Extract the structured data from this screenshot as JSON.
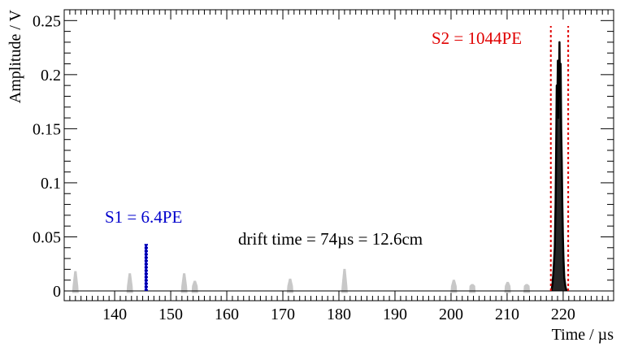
{
  "chart_data": {
    "type": "line",
    "title": "",
    "xlabel": "Time / µs",
    "ylabel": "Amplitude / V",
    "xlim": [
      131,
      229
    ],
    "ylim": [
      -0.009,
      0.26
    ],
    "x_major_ticks": [
      140,
      150,
      160,
      170,
      180,
      190,
      200,
      210,
      220
    ],
    "x_minor_step": 1,
    "y_major_ticks": [
      0,
      0.05,
      0.1,
      0.15,
      0.2,
      0.25
    ],
    "y_tick_labels": [
      "0",
      "0.05",
      "0.1",
      "0.15",
      "0.2",
      "0.25"
    ],
    "y_minor_step": 0.01,
    "grid": false,
    "legend": "none",
    "colors": {
      "noise": "#c8c8c8",
      "s1": "#0000cc",
      "s2_markers": "#e00000",
      "signal": "#000000",
      "baseline": "#000000"
    },
    "series": [
      {
        "role": "noise",
        "pulses": [
          {
            "x": 133.0,
            "y": 0.018
          },
          {
            "x": 142.7,
            "y": 0.016
          },
          {
            "x": 152.4,
            "y": 0.016
          },
          {
            "x": 154.3,
            "y": 0.009
          },
          {
            "x": 171.3,
            "y": 0.011
          },
          {
            "x": 181.0,
            "y": 0.02
          },
          {
            "x": 200.5,
            "y": 0.01
          },
          {
            "x": 203.8,
            "y": 0.006
          },
          {
            "x": 210.1,
            "y": 0.008
          },
          {
            "x": 213.5,
            "y": 0.006
          }
        ]
      },
      {
        "role": "s1",
        "pulses": [
          {
            "x": 145.6,
            "y": 0.043
          }
        ]
      },
      {
        "role": "s2",
        "waveform": [
          [
            217.9,
            0.0
          ],
          [
            218.1,
            0.006
          ],
          [
            218.3,
            0.02
          ],
          [
            218.5,
            0.04
          ],
          [
            218.65,
            0.08
          ],
          [
            218.75,
            0.13
          ],
          [
            218.85,
            0.19
          ],
          [
            218.95,
            0.17
          ],
          [
            219.05,
            0.213
          ],
          [
            219.15,
            0.16
          ],
          [
            219.25,
            0.19
          ],
          [
            219.35,
            0.23
          ],
          [
            219.45,
            0.18
          ],
          [
            219.55,
            0.21
          ],
          [
            219.65,
            0.15
          ],
          [
            219.75,
            0.12
          ],
          [
            219.85,
            0.08
          ],
          [
            219.95,
            0.05
          ],
          [
            220.05,
            0.03
          ],
          [
            220.2,
            0.012
          ],
          [
            220.4,
            0.004
          ],
          [
            220.6,
            0.0
          ]
        ]
      }
    ],
    "markers": {
      "s1_window": [
        145.45,
        145.8
      ],
      "s2_window": [
        217.8,
        220.9
      ]
    },
    "annotations": {
      "s1_label": "S1 = 6.4PE",
      "s2_label": "S2 = 1044PE",
      "drift_label": "drift time = 74µs = 12.6cm"
    }
  }
}
